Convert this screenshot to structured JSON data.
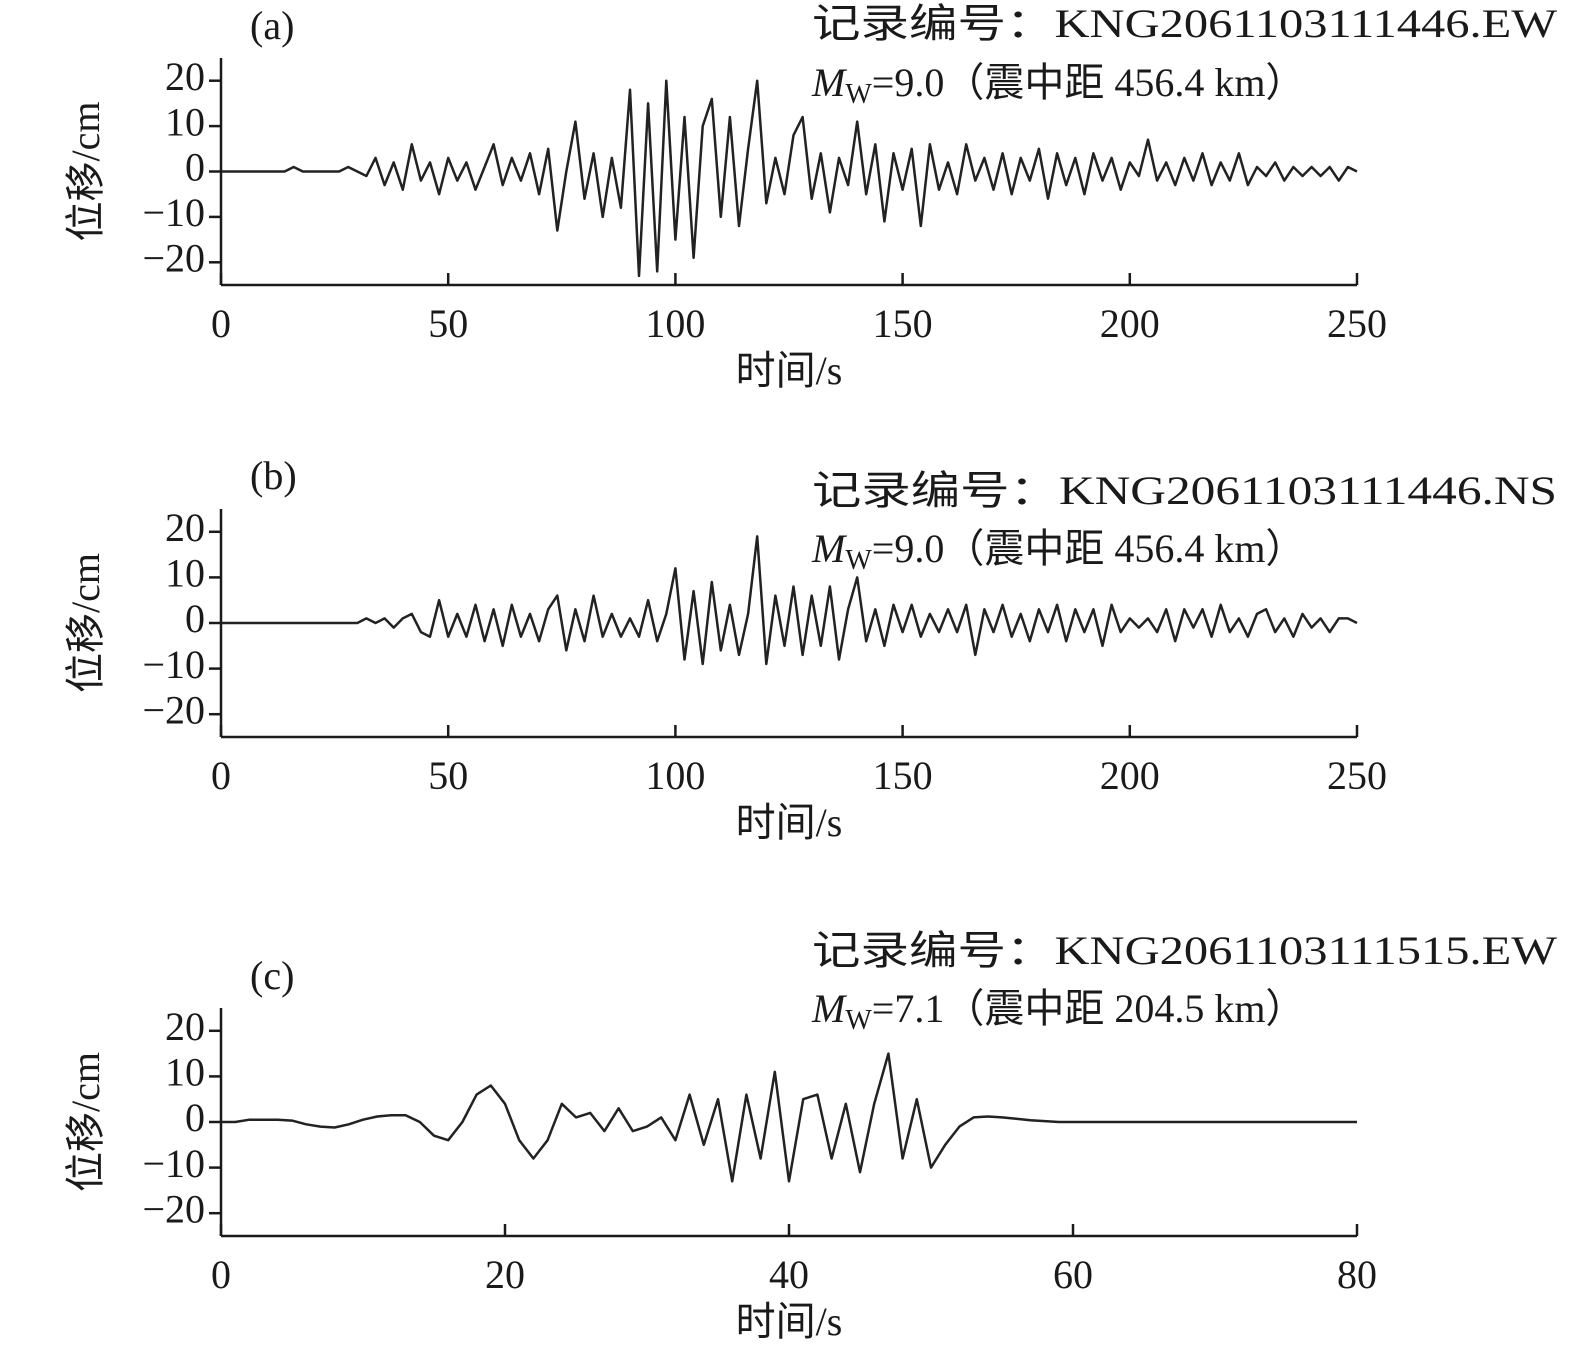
{
  "chart_data": [
    {
      "type": "line",
      "title": "(a)",
      "record": "记录编号：KNG2061103111446.EW",
      "magnitude_symbol": "M",
      "magnitude_subscript": "W",
      "magnitude_text": "=9.0（震中距 456.4 km）",
      "x_label": "时间/s",
      "y_label": "位移/cm",
      "xlim": [
        0,
        250
      ],
      "xticks": [
        0,
        50,
        100,
        150,
        200,
        250
      ],
      "ylim": [
        -25,
        25
      ],
      "yticks": [
        {
          "value": -20,
          "label": "−20"
        },
        {
          "value": -10,
          "label": "−10"
        },
        0,
        10,
        20
      ],
      "color": "#222222",
      "x": [
        0,
        2,
        4,
        6,
        8,
        10,
        12,
        14,
        16,
        18,
        20,
        22,
        24,
        26,
        28,
        30,
        32,
        34,
        36,
        38,
        40,
        42,
        44,
        46,
        48,
        50,
        52,
        54,
        56,
        58,
        60,
        62,
        64,
        66,
        68,
        70,
        72,
        74,
        76,
        78,
        80,
        82,
        84,
        86,
        88,
        90,
        92,
        94,
        96,
        98,
        100,
        102,
        104,
        106,
        108,
        110,
        112,
        114,
        116,
        118,
        120,
        122,
        124,
        126,
        128,
        130,
        132,
        134,
        136,
        138,
        140,
        142,
        144,
        146,
        148,
        150,
        152,
        154,
        156,
        158,
        160,
        162,
        164,
        166,
        168,
        170,
        172,
        174,
        176,
        178,
        180,
        182,
        184,
        186,
        188,
        190,
        192,
        194,
        196,
        198,
        200,
        202,
        204,
        206,
        208,
        210,
        212,
        214,
        216,
        218,
        220,
        222,
        224,
        226,
        228,
        230,
        232,
        234,
        236,
        238,
        240,
        242,
        244,
        246,
        248,
        250
      ],
      "values": [
        0,
        0,
        0,
        0,
        0,
        0,
        0,
        0,
        1,
        0,
        0,
        0,
        0,
        0,
        1,
        0,
        -1,
        3,
        -3,
        2,
        -4,
        6,
        -2,
        2,
        -5,
        3,
        -2,
        2,
        -4,
        1,
        6,
        -3,
        3,
        -2,
        4,
        -5,
        5,
        -13,
        0,
        11,
        -6,
        4,
        -10,
        3,
        -8,
        18,
        -23,
        15,
        -22,
        20,
        -15,
        12,
        -19,
        10,
        16,
        -10,
        12,
        -12,
        5,
        20,
        -7,
        3,
        -5,
        8,
        12,
        -6,
        4,
        -9,
        3,
        -3,
        11,
        -5,
        6,
        -11,
        4,
        -4,
        5,
        -12,
        6,
        -4,
        2,
        -5,
        6,
        -2,
        3,
        -4,
        4,
        -5,
        3,
        -2,
        5,
        -6,
        4,
        -3,
        3,
        -5,
        4,
        -2,
        3,
        -4,
        2,
        -1,
        7,
        -2,
        2,
        -3,
        3,
        -2,
        4,
        -3,
        2,
        -2,
        4,
        -3,
        1,
        -1,
        2,
        -2,
        1,
        -1,
        1,
        -1,
        1,
        -2,
        1,
        0
      ]
    },
    {
      "type": "line",
      "title": "(b)",
      "record": "记录编号：KNG2061103111446.NS",
      "magnitude_symbol": "M",
      "magnitude_subscript": "W",
      "magnitude_text": "=9.0（震中距 456.4 km）",
      "x_label": "时间/s",
      "y_label": "位移/cm",
      "xlim": [
        0,
        250
      ],
      "xticks": [
        0,
        50,
        100,
        150,
        200,
        250
      ],
      "ylim": [
        -25,
        25
      ],
      "yticks": [
        {
          "value": -20,
          "label": "−20"
        },
        {
          "value": -10,
          "label": "−10"
        },
        0,
        10,
        20
      ],
      "color": "#222222",
      "x": [
        0,
        2,
        4,
        6,
        8,
        10,
        12,
        14,
        16,
        18,
        20,
        22,
        24,
        26,
        28,
        30,
        32,
        34,
        36,
        38,
        40,
        42,
        44,
        46,
        48,
        50,
        52,
        54,
        56,
        58,
        60,
        62,
        64,
        66,
        68,
        70,
        72,
        74,
        76,
        78,
        80,
        82,
        84,
        86,
        88,
        90,
        92,
        94,
        96,
        98,
        100,
        102,
        104,
        106,
        108,
        110,
        112,
        114,
        116,
        118,
        120,
        122,
        124,
        126,
        128,
        130,
        132,
        134,
        136,
        138,
        140,
        142,
        144,
        146,
        148,
        150,
        152,
        154,
        156,
        158,
        160,
        162,
        164,
        166,
        168,
        170,
        172,
        174,
        176,
        178,
        180,
        182,
        184,
        186,
        188,
        190,
        192,
        194,
        196,
        198,
        200,
        202,
        204,
        206,
        208,
        210,
        212,
        214,
        216,
        218,
        220,
        222,
        224,
        226,
        228,
        230,
        232,
        234,
        236,
        238,
        240,
        242,
        244,
        246,
        248,
        250
      ],
      "values": [
        0,
        0,
        0,
        0,
        0,
        0,
        0,
        0,
        0,
        0,
        0,
        0,
        0,
        0,
        0,
        0,
        1,
        0,
        1,
        -1,
        1,
        2,
        -2,
        -3,
        5,
        -3,
        2,
        -3,
        4,
        -4,
        3,
        -5,
        4,
        -3,
        2,
        -4,
        3,
        6,
        -6,
        3,
        -4,
        6,
        -3,
        2,
        -3,
        1,
        -3,
        5,
        -4,
        2,
        12,
        -8,
        7,
        -9,
        9,
        -6,
        4,
        -7,
        2,
        19,
        -9,
        6,
        -5,
        8,
        -7,
        6,
        -5,
        8,
        -8,
        3,
        10,
        -4,
        3,
        -5,
        4,
        -2,
        4,
        -3,
        2,
        -2,
        3,
        -2,
        4,
        -7,
        3,
        -2,
        4,
        -3,
        2,
        -4,
        3,
        -2,
        4,
        -4,
        3,
        -2,
        3,
        -5,
        4,
        -2,
        1,
        -1,
        1,
        -2,
        3,
        -4,
        3,
        -1,
        3,
        -3,
        4,
        -2,
        1,
        -3,
        2,
        3,
        -2,
        1,
        -3,
        2,
        -1,
        1,
        -2,
        1,
        1,
        0
      ]
    },
    {
      "type": "line",
      "title": "(c)",
      "record": "记录编号：KNG2061103111515.EW",
      "magnitude_symbol": "M",
      "magnitude_subscript": "W",
      "magnitude_text": "=7.1（震中距 204.5 km）",
      "x_label": "时间/s",
      "y_label": "位移/cm",
      "xlim": [
        0,
        80
      ],
      "xticks": [
        0,
        20,
        40,
        60,
        80
      ],
      "ylim": [
        -25,
        25
      ],
      "yticks": [
        {
          "value": -20,
          "label": "−20"
        },
        {
          "value": -10,
          "label": "−10"
        },
        0,
        10,
        20
      ],
      "color": "#222222",
      "x": [
        0,
        1,
        2,
        3,
        4,
        5,
        6,
        7,
        8,
        9,
        10,
        11,
        12,
        13,
        14,
        15,
        16,
        17,
        18,
        19,
        20,
        21,
        22,
        23,
        24,
        25,
        26,
        27,
        28,
        29,
        30,
        31,
        32,
        33,
        34,
        35,
        36,
        37,
        38,
        39,
        40,
        41,
        42,
        43,
        44,
        45,
        46,
        47,
        48,
        49,
        50,
        51,
        52,
        53,
        54,
        55,
        56,
        57,
        58,
        59,
        60,
        61,
        62,
        63,
        64,
        65,
        66,
        67,
        68,
        69,
        70,
        71,
        72,
        73,
        74,
        75,
        76,
        77,
        78,
        79,
        80
      ],
      "values": [
        0,
        0,
        0.5,
        0.5,
        0.5,
        0.3,
        -0.5,
        -1,
        -1.2,
        -0.5,
        0.5,
        1.2,
        1.5,
        1.5,
        0,
        -3,
        -4,
        0,
        6,
        8,
        4,
        -4,
        -8,
        -4,
        4,
        1,
        2,
        -2,
        3,
        -2,
        -1,
        1,
        -4,
        6,
        -5,
        5,
        -13,
        6,
        -8,
        11,
        -13,
        5,
        6,
        -8,
        4,
        -11,
        4,
        15,
        -8,
        5,
        -10,
        -5,
        -1,
        1,
        1.2,
        1,
        0.7,
        0.4,
        0.2,
        0,
        0,
        0,
        0,
        0,
        0,
        0,
        0,
        0,
        0,
        0,
        0,
        0,
        0,
        0,
        0,
        0,
        0,
        0,
        0,
        0,
        0
      ]
    }
  ]
}
